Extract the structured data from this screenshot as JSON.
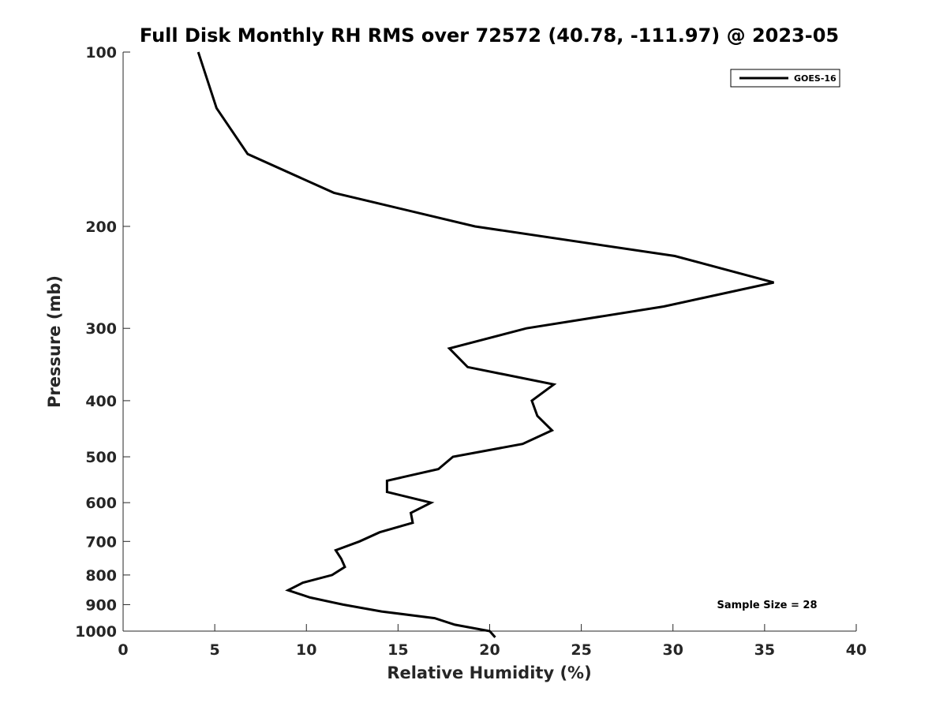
{
  "chart_data": {
    "type": "line",
    "title": "Full Disk Monthly RH RMS over 72572 (40.78, -111.97) @ 2023-05",
    "xlabel": "Relative Humidity (%)",
    "ylabel": "Pressure (mb)",
    "xlim": [
      0,
      40
    ],
    "ylim": [
      100,
      1000
    ],
    "y_scale": "log",
    "y_reversed": true,
    "x_ticks": [
      0,
      5,
      10,
      15,
      20,
      25,
      30,
      35,
      40
    ],
    "x_tick_labels": [
      "0",
      "5",
      "10",
      "15",
      "20",
      "25",
      "30",
      "35",
      "40"
    ],
    "y_ticks": [
      100,
      200,
      300,
      400,
      500,
      600,
      700,
      800,
      900,
      1000
    ],
    "y_tick_labels": [
      "100",
      "200",
      "300",
      "400",
      "500",
      "600",
      "700",
      "800",
      "900",
      "1000"
    ],
    "grid": false,
    "legend_position": "top-right",
    "series": [
      {
        "name": "GOES-16",
        "color": "#000000",
        "points": [
          {
            "x": 4.1,
            "p": 100
          },
          {
            "x": 5.1,
            "p": 125
          },
          {
            "x": 6.8,
            "p": 150
          },
          {
            "x": 11.5,
            "p": 175
          },
          {
            "x": 19.2,
            "p": 200
          },
          {
            "x": 30.1,
            "p": 225
          },
          {
            "x": 35.5,
            "p": 250
          },
          {
            "x": 29.5,
            "p": 275
          },
          {
            "x": 22.0,
            "p": 300
          },
          {
            "x": 17.8,
            "p": 325
          },
          {
            "x": 18.8,
            "p": 350
          },
          {
            "x": 23.5,
            "p": 375
          },
          {
            "x": 22.3,
            "p": 400
          },
          {
            "x": 22.6,
            "p": 425
          },
          {
            "x": 23.4,
            "p": 450
          },
          {
            "x": 21.8,
            "p": 475
          },
          {
            "x": 18.0,
            "p": 500
          },
          {
            "x": 17.2,
            "p": 525
          },
          {
            "x": 14.4,
            "p": 550
          },
          {
            "x": 14.4,
            "p": 575
          },
          {
            "x": 16.8,
            "p": 600
          },
          {
            "x": 15.7,
            "p": 625
          },
          {
            "x": 15.8,
            "p": 650
          },
          {
            "x": 14.0,
            "p": 675
          },
          {
            "x": 12.9,
            "p": 700
          },
          {
            "x": 11.6,
            "p": 725
          },
          {
            "x": 11.9,
            "p": 750
          },
          {
            "x": 12.1,
            "p": 775
          },
          {
            "x": 11.4,
            "p": 800
          },
          {
            "x": 9.8,
            "p": 825
          },
          {
            "x": 9.0,
            "p": 850
          },
          {
            "x": 10.2,
            "p": 875
          },
          {
            "x": 12.0,
            "p": 900
          },
          {
            "x": 14.1,
            "p": 925
          },
          {
            "x": 17.0,
            "p": 950
          },
          {
            "x": 18.1,
            "p": 975
          },
          {
            "x": 20.0,
            "p": 1000
          },
          {
            "x": 20.3,
            "p": 1025
          }
        ]
      }
    ],
    "annotation": "Sample Size = 28"
  }
}
